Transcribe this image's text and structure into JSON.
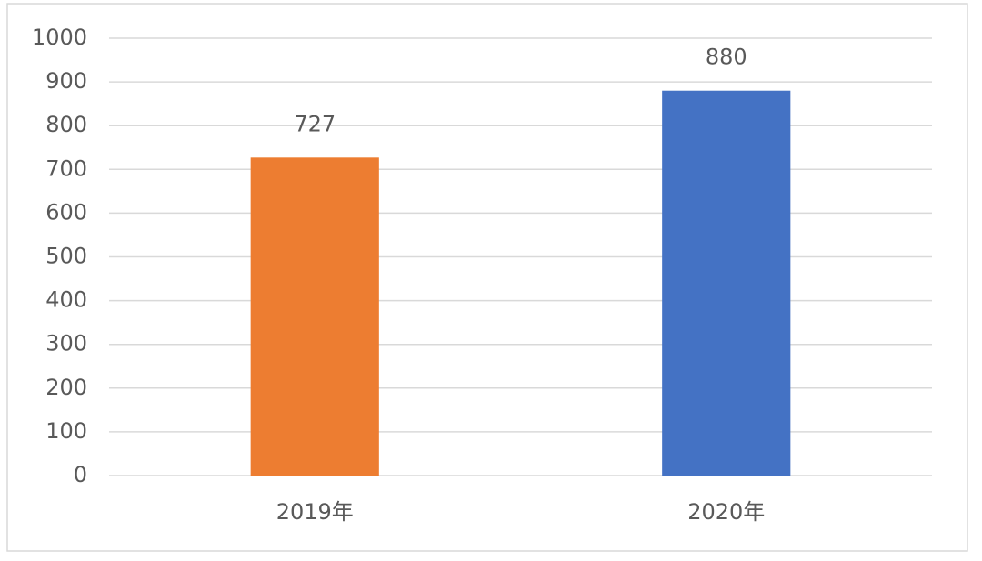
{
  "chart_data": {
    "type": "bar",
    "categories": [
      "2019年",
      "2020年"
    ],
    "values": [
      727,
      880
    ],
    "colors": [
      "#ed7d31",
      "#4472c4"
    ],
    "ylim": [
      0,
      1000
    ],
    "yticks": [
      0,
      100,
      200,
      300,
      400,
      500,
      600,
      700,
      800,
      900,
      1000
    ],
    "grid": true
  }
}
